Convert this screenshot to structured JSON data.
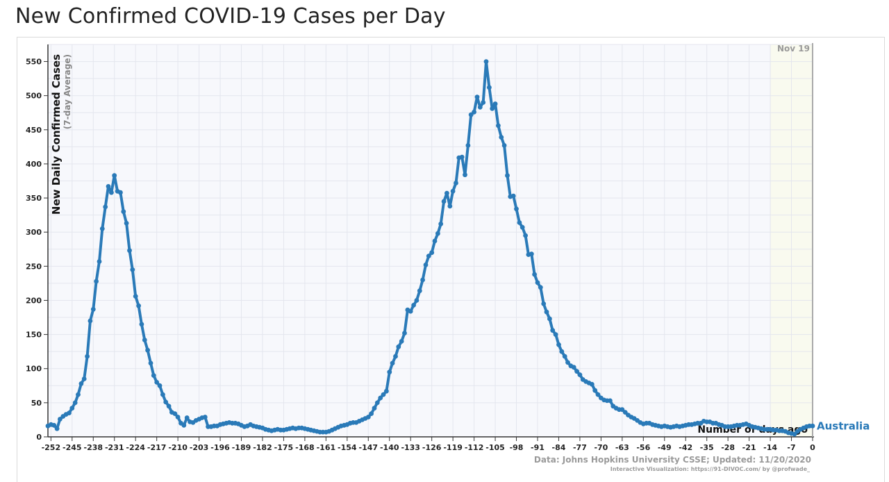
{
  "page": {
    "title": "New Confirmed COVID-19 Cases per Day"
  },
  "colors": {
    "series": "#2a7ab8",
    "plot_bg": "#f7f8fc",
    "grid": "#e4e6ee",
    "projection_bg": "#f9faef"
  },
  "chart_data": {
    "type": "line",
    "title": "New Confirmed COVID-19 Cases per Day",
    "ylabel": "New Daily Confirmed Cases",
    "ylabel_sub": "(7-day Average)",
    "xlabel": "Number of days ago",
    "xlim": [
      -253,
      0
    ],
    "ylim": [
      0,
      575
    ],
    "x_ticks": [
      -252,
      -245,
      -238,
      -231,
      -224,
      -217,
      -210,
      -203,
      -196,
      -189,
      -182,
      -175,
      -168,
      -161,
      -154,
      -147,
      -140,
      -133,
      -126,
      -119,
      -112,
      -105,
      -98,
      -91,
      -84,
      -77,
      -70,
      -63,
      -56,
      -49,
      -42,
      -35,
      -28,
      -21,
      -14,
      -7,
      0
    ],
    "y_ticks": [
      0,
      50,
      100,
      150,
      200,
      250,
      300,
      350,
      400,
      450,
      500,
      550
    ],
    "grid": true,
    "date_marker": "Nov 19",
    "projection_start": -14,
    "source": "Data: Johns Hopkins University CSSE; Updated: 11/20/2020",
    "credit": "Interactive Visualization: https://91-DIVOC.com/ by @profwade_",
    "series": [
      {
        "name": "Australia",
        "color": "#2a7ab8",
        "points": [
          [
            -253,
            16
          ],
          [
            -252,
            18
          ],
          [
            -251,
            17
          ],
          [
            -250,
            12
          ],
          [
            -249,
            26
          ],
          [
            -248,
            30
          ],
          [
            -247,
            33
          ],
          [
            -246,
            35
          ],
          [
            -245,
            42
          ],
          [
            -244,
            50
          ],
          [
            -243,
            62
          ],
          [
            -242,
            78
          ],
          [
            -241,
            85
          ],
          [
            -240,
            118
          ],
          [
            -239,
            170
          ],
          [
            -238,
            187
          ],
          [
            -237,
            228
          ],
          [
            -236,
            257
          ],
          [
            -235,
            305
          ],
          [
            -234,
            337
          ],
          [
            -233,
            367
          ],
          [
            -232,
            358
          ],
          [
            -231,
            383
          ],
          [
            -230,
            360
          ],
          [
            -229,
            358
          ],
          [
            -228,
            330
          ],
          [
            -227,
            313
          ],
          [
            -226,
            273
          ],
          [
            -225,
            245
          ],
          [
            -224,
            206
          ],
          [
            -223,
            192
          ],
          [
            -222,
            165
          ],
          [
            -221,
            142
          ],
          [
            -220,
            127
          ],
          [
            -219,
            108
          ],
          [
            -218,
            90
          ],
          [
            -217,
            80
          ],
          [
            -216,
            75
          ],
          [
            -215,
            62
          ],
          [
            -214,
            51
          ],
          [
            -213,
            45
          ],
          [
            -212,
            36
          ],
          [
            -211,
            34
          ],
          [
            -210,
            29
          ],
          [
            -209,
            20
          ],
          [
            -208,
            17
          ],
          [
            -207,
            28
          ],
          [
            -206,
            22
          ],
          [
            -205,
            21
          ],
          [
            -204,
            24
          ],
          [
            -203,
            26
          ],
          [
            -202,
            28
          ],
          [
            -201,
            29
          ],
          [
            -200,
            15
          ],
          [
            -199,
            15
          ],
          [
            -198,
            16
          ],
          [
            -197,
            16
          ],
          [
            -196,
            18
          ],
          [
            -195,
            19
          ],
          [
            -194,
            20
          ],
          [
            -193,
            21
          ],
          [
            -192,
            20
          ],
          [
            -191,
            20
          ],
          [
            -190,
            19
          ],
          [
            -189,
            17
          ],
          [
            -188,
            15
          ],
          [
            -187,
            16
          ],
          [
            -186,
            18
          ],
          [
            -185,
            16
          ],
          [
            -184,
            15
          ],
          [
            -183,
            14
          ],
          [
            -182,
            13
          ],
          [
            -181,
            11
          ],
          [
            -180,
            10
          ],
          [
            -179,
            9
          ],
          [
            -178,
            10
          ],
          [
            -177,
            11
          ],
          [
            -176,
            10
          ],
          [
            -175,
            10
          ],
          [
            -174,
            11
          ],
          [
            -173,
            12
          ],
          [
            -172,
            13
          ],
          [
            -171,
            12
          ],
          [
            -170,
            13
          ],
          [
            -169,
            13
          ],
          [
            -168,
            12
          ],
          [
            -167,
            11
          ],
          [
            -166,
            10
          ],
          [
            -165,
            9
          ],
          [
            -164,
            8
          ],
          [
            -163,
            7
          ],
          [
            -162,
            7
          ],
          [
            -161,
            7
          ],
          [
            -160,
            8
          ],
          [
            -159,
            10
          ],
          [
            -158,
            12
          ],
          [
            -157,
            14
          ],
          [
            -156,
            16
          ],
          [
            -155,
            17
          ],
          [
            -154,
            18
          ],
          [
            -153,
            20
          ],
          [
            -152,
            21
          ],
          [
            -151,
            21
          ],
          [
            -150,
            23
          ],
          [
            -149,
            25
          ],
          [
            -148,
            27
          ],
          [
            -147,
            29
          ],
          [
            -146,
            34
          ],
          [
            -145,
            42
          ],
          [
            -144,
            50
          ],
          [
            -143,
            57
          ],
          [
            -142,
            62
          ],
          [
            -141,
            67
          ],
          [
            -140,
            95
          ],
          [
            -139,
            108
          ],
          [
            -138,
            118
          ],
          [
            -137,
            132
          ],
          [
            -136,
            140
          ],
          [
            -135,
            152
          ],
          [
            -134,
            186
          ],
          [
            -133,
            184
          ],
          [
            -132,
            193
          ],
          [
            -131,
            200
          ],
          [
            -130,
            214
          ],
          [
            -129,
            230
          ],
          [
            -128,
            252
          ],
          [
            -127,
            265
          ],
          [
            -126,
            270
          ],
          [
            -125,
            287
          ],
          [
            -124,
            298
          ],
          [
            -123,
            312
          ],
          [
            -122,
            345
          ],
          [
            -121,
            357
          ],
          [
            -120,
            338
          ],
          [
            -119,
            360
          ],
          [
            -118,
            372
          ],
          [
            -117,
            409
          ],
          [
            -116,
            410
          ],
          [
            -115,
            384
          ],
          [
            -114,
            427
          ],
          [
            -113,
            472
          ],
          [
            -112,
            476
          ],
          [
            -111,
            498
          ],
          [
            -110,
            483
          ],
          [
            -109,
            490
          ],
          [
            -108,
            550
          ],
          [
            -107,
            512
          ],
          [
            -106,
            481
          ],
          [
            -105,
            488
          ],
          [
            -104,
            456
          ],
          [
            -103,
            439
          ],
          [
            -102,
            427
          ],
          [
            -101,
            383
          ],
          [
            -100,
            352
          ],
          [
            -99,
            353
          ],
          [
            -98,
            334
          ],
          [
            -97,
            314
          ],
          [
            -96,
            307
          ],
          [
            -95,
            295
          ],
          [
            -94,
            267
          ],
          [
            -93,
            268
          ],
          [
            -92,
            238
          ],
          [
            -91,
            226
          ],
          [
            -90,
            219
          ],
          [
            -89,
            195
          ],
          [
            -88,
            183
          ],
          [
            -87,
            173
          ],
          [
            -86,
            156
          ],
          [
            -85,
            150
          ],
          [
            -84,
            135
          ],
          [
            -83,
            125
          ],
          [
            -82,
            118
          ],
          [
            -81,
            109
          ],
          [
            -80,
            104
          ],
          [
            -79,
            102
          ],
          [
            -78,
            96
          ],
          [
            -77,
            91
          ],
          [
            -76,
            84
          ],
          [
            -75,
            81
          ],
          [
            -74,
            79
          ],
          [
            -73,
            77
          ],
          [
            -72,
            68
          ],
          [
            -71,
            62
          ],
          [
            -70,
            57
          ],
          [
            -69,
            54
          ],
          [
            -68,
            53
          ],
          [
            -67,
            53
          ],
          [
            -66,
            45
          ],
          [
            -65,
            42
          ],
          [
            -64,
            40
          ],
          [
            -63,
            40
          ],
          [
            -62,
            36
          ],
          [
            -61,
            32
          ],
          [
            -60,
            29
          ],
          [
            -59,
            27
          ],
          [
            -58,
            24
          ],
          [
            -57,
            21
          ],
          [
            -56,
            19
          ],
          [
            -55,
            20
          ],
          [
            -54,
            20
          ],
          [
            -53,
            18
          ],
          [
            -52,
            17
          ],
          [
            -51,
            16
          ],
          [
            -50,
            15
          ],
          [
            -49,
            16
          ],
          [
            -48,
            15
          ],
          [
            -47,
            14
          ],
          [
            -46,
            15
          ],
          [
            -45,
            16
          ],
          [
            -44,
            15
          ],
          [
            -43,
            16
          ],
          [
            -42,
            17
          ],
          [
            -41,
            18
          ],
          [
            -40,
            18
          ],
          [
            -39,
            19
          ],
          [
            -38,
            20
          ],
          [
            -37,
            20
          ],
          [
            -36,
            23
          ],
          [
            -35,
            22
          ],
          [
            -34,
            22
          ],
          [
            -33,
            20
          ],
          [
            -32,
            20
          ],
          [
            -31,
            18
          ],
          [
            -30,
            17
          ],
          [
            -29,
            15
          ],
          [
            -28,
            15
          ],
          [
            -27,
            15
          ],
          [
            -26,
            16
          ],
          [
            -25,
            17
          ],
          [
            -24,
            17
          ],
          [
            -23,
            18
          ],
          [
            -22,
            19
          ],
          [
            -21,
            17
          ],
          [
            -20,
            15
          ],
          [
            -19,
            14
          ],
          [
            -18,
            13
          ],
          [
            -17,
            12
          ],
          [
            -16,
            11
          ],
          [
            -15,
            11
          ],
          [
            -14,
            11
          ],
          [
            -13,
            10
          ],
          [
            -12,
            10
          ],
          [
            -11,
            9
          ],
          [
            -10,
            9
          ],
          [
            -9,
            8
          ],
          [
            -8,
            6
          ],
          [
            -7,
            5
          ],
          [
            -6,
            4
          ],
          [
            -5,
            8
          ],
          [
            -4,
            11
          ],
          [
            -3,
            13
          ],
          [
            -2,
            15
          ],
          [
            -1,
            16
          ],
          [
            0,
            16
          ]
        ]
      }
    ]
  }
}
